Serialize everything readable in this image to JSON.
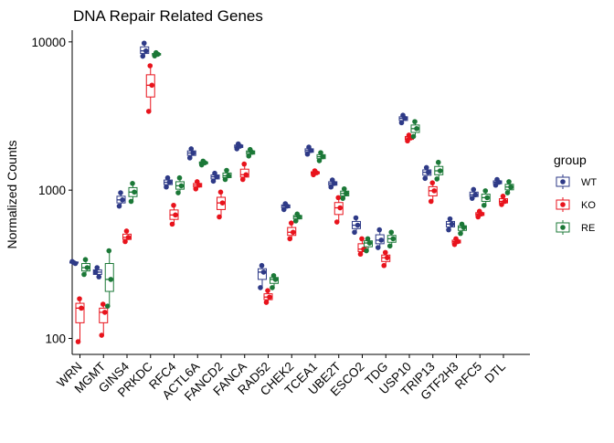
{
  "chart_data": {
    "type": "box",
    "title": "DNA Repair Related Genes",
    "xlabel": "",
    "ylabel": "Normalized Counts",
    "y_scale": "log10",
    "ylim": [
      78,
      12000
    ],
    "yticks": [
      100,
      1000,
      10000
    ],
    "ytick_labels": [
      "100",
      "1000",
      "10000"
    ],
    "grid": false,
    "legend": {
      "title": "group",
      "position": "right"
    },
    "categories": [
      "WRN",
      "MGMT",
      "GINS4",
      "PRKDC",
      "RFC4",
      "ACTL6A",
      "FANCD2",
      "FANCA",
      "RAD52",
      "CHEK2",
      "TCEA1",
      "UBE2T",
      "ESCO2",
      "TDG",
      "USP10",
      "TRIP13",
      "GTF2H3",
      "RFC5",
      "DTL"
    ],
    "series": [
      {
        "name": "WT",
        "color": "#2e3a87",
        "points": [
          [
            330,
            320,
            325
          ],
          [
            280,
            260,
            300
          ],
          [
            780,
            860,
            960
          ],
          [
            8000,
            8700,
            9800
          ],
          [
            1050,
            1130,
            1210
          ],
          [
            1650,
            1780,
            1900
          ],
          [
            1150,
            1230,
            1300
          ],
          [
            1900,
            1980,
            2050
          ],
          [
            220,
            280,
            310
          ],
          [
            740,
            780,
            810
          ],
          [
            1750,
            1850,
            1950
          ],
          [
            1050,
            1110,
            1170
          ],
          [
            520,
            580,
            650
          ],
          [
            410,
            460,
            540
          ],
          [
            2850,
            3050,
            3200
          ],
          [
            1200,
            1320,
            1420
          ],
          [
            540,
            590,
            640
          ],
          [
            880,
            930,
            1010
          ],
          [
            1080,
            1130,
            1180
          ]
        ]
      },
      {
        "name": "KO",
        "color": "#e8131c",
        "points": [
          [
            95,
            160,
            185
          ],
          [
            105,
            150,
            170
          ],
          [
            450,
            480,
            530
          ],
          [
            3400,
            5100,
            6900
          ],
          [
            590,
            680,
            790
          ],
          [
            1020,
            1080,
            1140
          ],
          [
            660,
            820,
            970
          ],
          [
            1180,
            1270,
            1500
          ],
          [
            175,
            190,
            210
          ],
          [
            470,
            520,
            600
          ],
          [
            1270,
            1310,
            1350
          ],
          [
            610,
            760,
            890
          ],
          [
            370,
            400,
            470
          ],
          [
            310,
            350,
            380
          ],
          [
            2150,
            2250,
            2350
          ],
          [
            840,
            990,
            1120
          ],
          [
            430,
            450,
            470
          ],
          [
            660,
            690,
            720
          ],
          [
            800,
            840,
            910
          ]
        ]
      },
      {
        "name": "RE",
        "color": "#1b7837",
        "points": [
          [
            270,
            300,
            340
          ],
          [
            165,
            250,
            390
          ],
          [
            840,
            970,
            1110
          ],
          [
            8050,
            8250,
            8450
          ],
          [
            960,
            1070,
            1210
          ],
          [
            1480,
            1530,
            1570
          ],
          [
            1180,
            1250,
            1360
          ],
          [
            1700,
            1800,
            1880
          ],
          [
            220,
            250,
            265
          ],
          [
            620,
            660,
            690
          ],
          [
            1580,
            1680,
            1790
          ],
          [
            880,
            950,
            1020
          ],
          [
            390,
            440,
            470
          ],
          [
            420,
            470,
            520
          ],
          [
            2300,
            2600,
            2900
          ],
          [
            1190,
            1350,
            1540
          ],
          [
            510,
            560,
            590
          ],
          [
            790,
            890,
            990
          ],
          [
            960,
            1050,
            1140
          ]
        ]
      }
    ]
  }
}
